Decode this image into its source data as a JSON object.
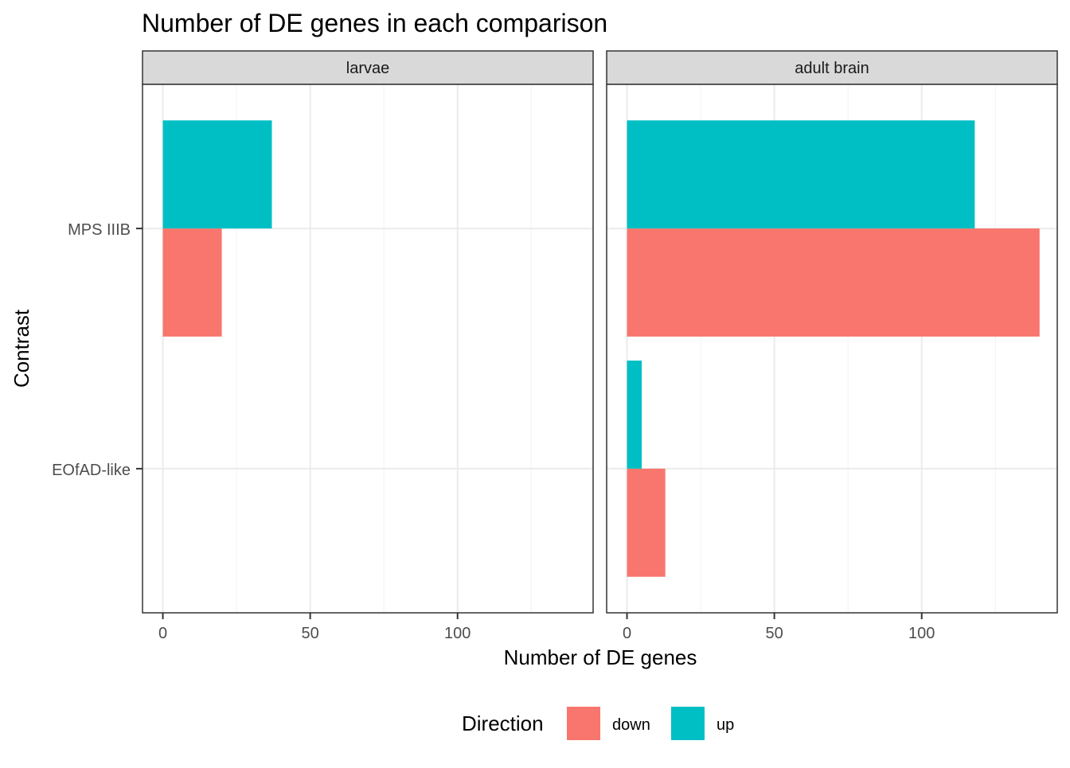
{
  "chart_data": {
    "type": "bar",
    "orientation": "horizontal",
    "title": "Number of DE genes in each comparison",
    "xlabel": "Number of DE genes",
    "ylabel": "Contrast",
    "xlim": [
      -6.9,
      146
    ],
    "x_ticks": [
      0,
      50,
      100
    ],
    "categories": [
      "MPS IIIB",
      "EOfAD-like"
    ],
    "facets": [
      "larvae",
      "adult brain"
    ],
    "grid": true,
    "legend": {
      "title": "Direction",
      "position": "bottom",
      "entries": [
        {
          "label": "down",
          "color": "#F8766D"
        },
        {
          "label": "up",
          "color": "#00BFC4"
        }
      ]
    },
    "series": [
      {
        "name": "down",
        "color": "#F8766D",
        "values": {
          "larvae": [
            20,
            0
          ],
          "adult brain": [
            140,
            13
          ]
        }
      },
      {
        "name": "up",
        "color": "#00BFC4",
        "values": {
          "larvae": [
            37,
            0
          ],
          "adult brain": [
            118,
            5
          ]
        }
      }
    ]
  }
}
